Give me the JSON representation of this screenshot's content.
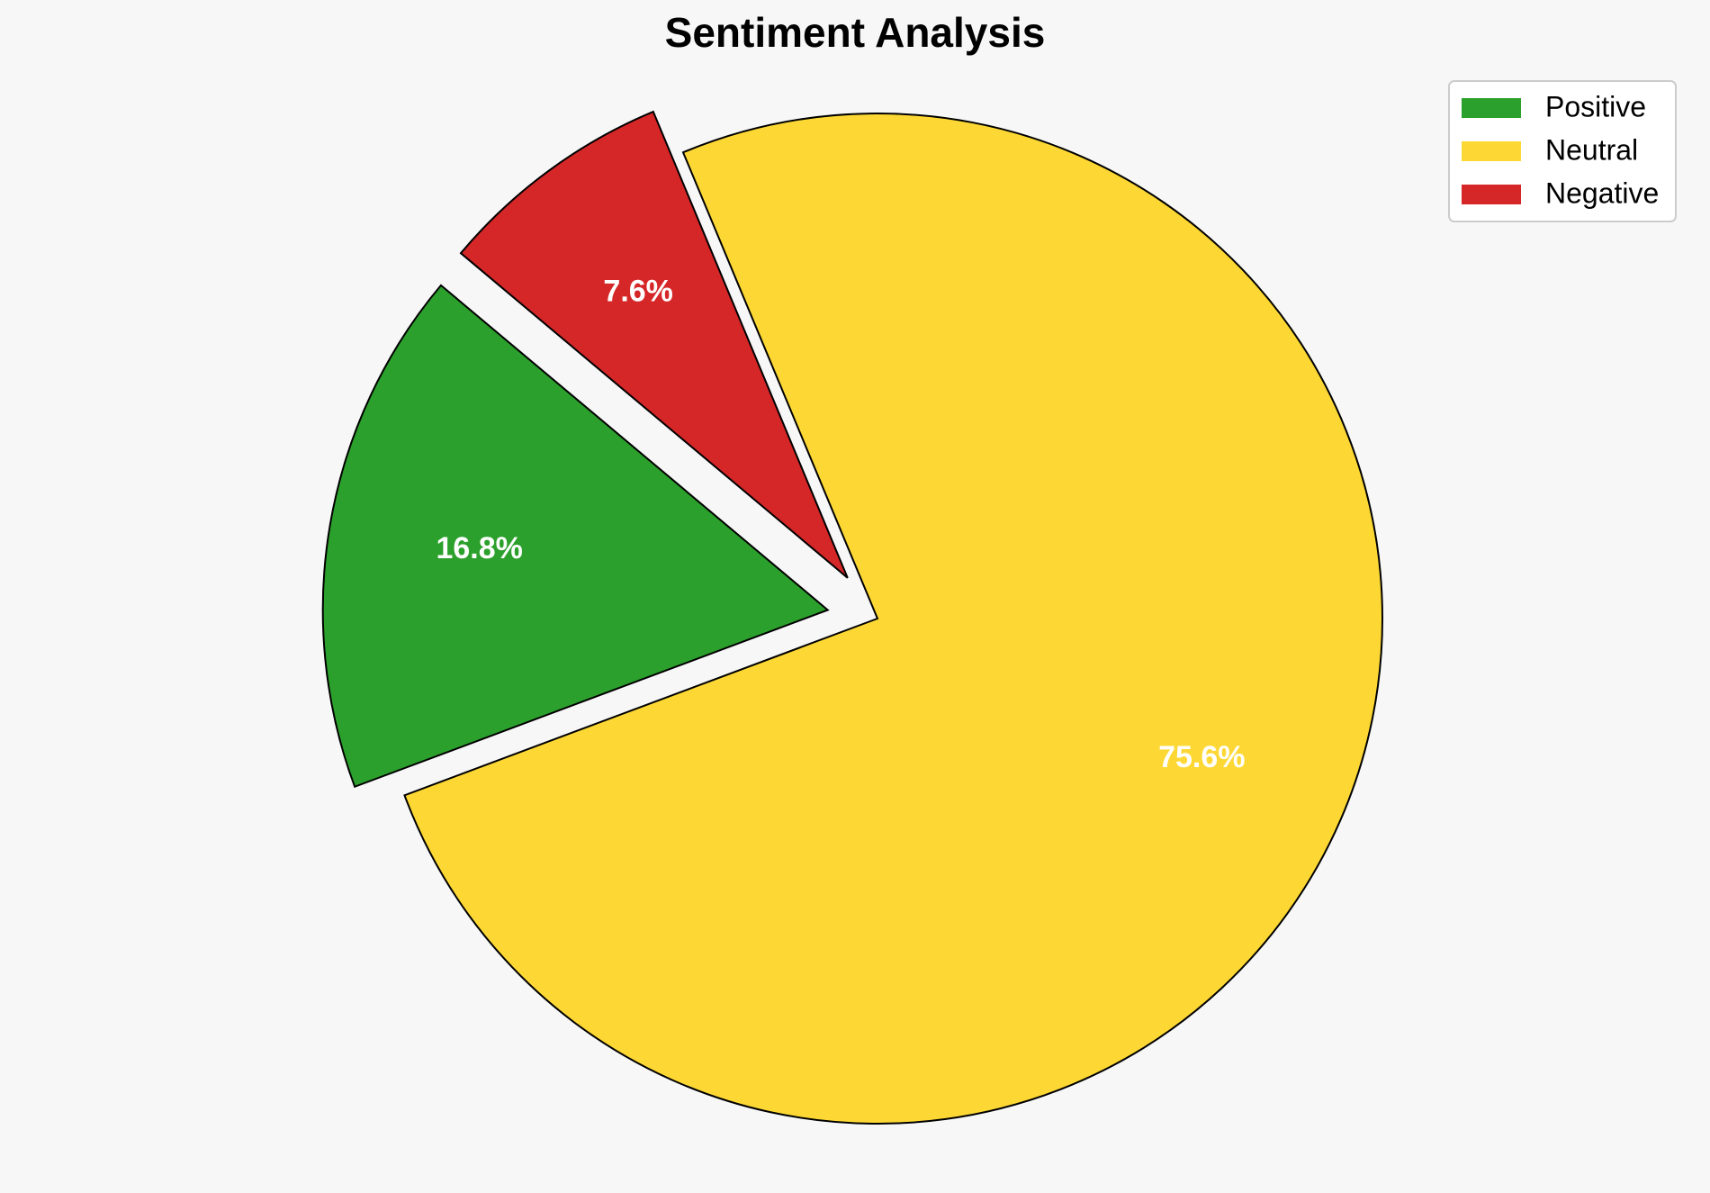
{
  "chart_data": {
    "type": "pie",
    "title": "Sentiment Analysis",
    "categories": [
      "Positive",
      "Neutral",
      "Negative"
    ],
    "values": [
      16.8,
      75.6,
      7.6
    ],
    "value_labels": [
      "16.8%",
      "75.6%",
      "7.6%"
    ],
    "colors": [
      "#2ca02c",
      "#fdd835",
      "#d62728"
    ],
    "explode": [
      0.1,
      0,
      0.1
    ],
    "startangle": 140,
    "legend": "upper right"
  }
}
